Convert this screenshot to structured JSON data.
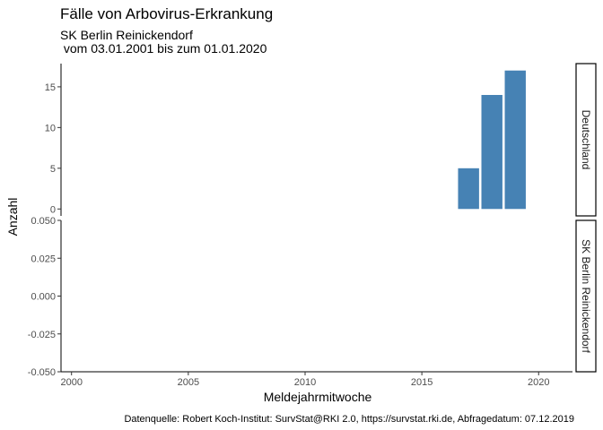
{
  "chart_data": {
    "type": "bar",
    "title": "Fälle von Arbovirus-Erkrankung",
    "subtitle_line1": "SK Berlin Reinickendorf",
    "subtitle_line2": " vom 03.01.2001 bis zum 01.01.2020",
    "xlabel": "Meldejahrmitwoche",
    "ylabel": "Anzahl",
    "caption": "Datenquelle: Robert Koch-Institut: SurvStat@RKI 2.0, https://survstat.rki.de, Abfragedatum: 07.12.2019",
    "xlim": [
      1999.55,
      2021.45
    ],
    "x_ticks": [
      2000,
      2005,
      2010,
      2015,
      2020
    ],
    "bar_color": "#4682b4",
    "panels": [
      {
        "label": "Deutschland",
        "ylim": [
          -0.85,
          17.85
        ],
        "y_ticks": [
          0,
          5,
          10,
          15
        ],
        "y_tick_labels": [
          "0",
          "5",
          "10",
          "15"
        ],
        "x": [
          2017,
          2018,
          2019
        ],
        "values": [
          5,
          14,
          17
        ]
      },
      {
        "label": "SK Berlin Reinickendorf",
        "ylim": [
          -0.05,
          0.05
        ],
        "y_ticks": [
          -0.05,
          -0.025,
          0,
          0.025,
          0.05
        ],
        "y_tick_labels": [
          "-0.050",
          "-0.025",
          "0.000",
          "0.025",
          "0.050"
        ],
        "x": [],
        "values": []
      }
    ]
  }
}
